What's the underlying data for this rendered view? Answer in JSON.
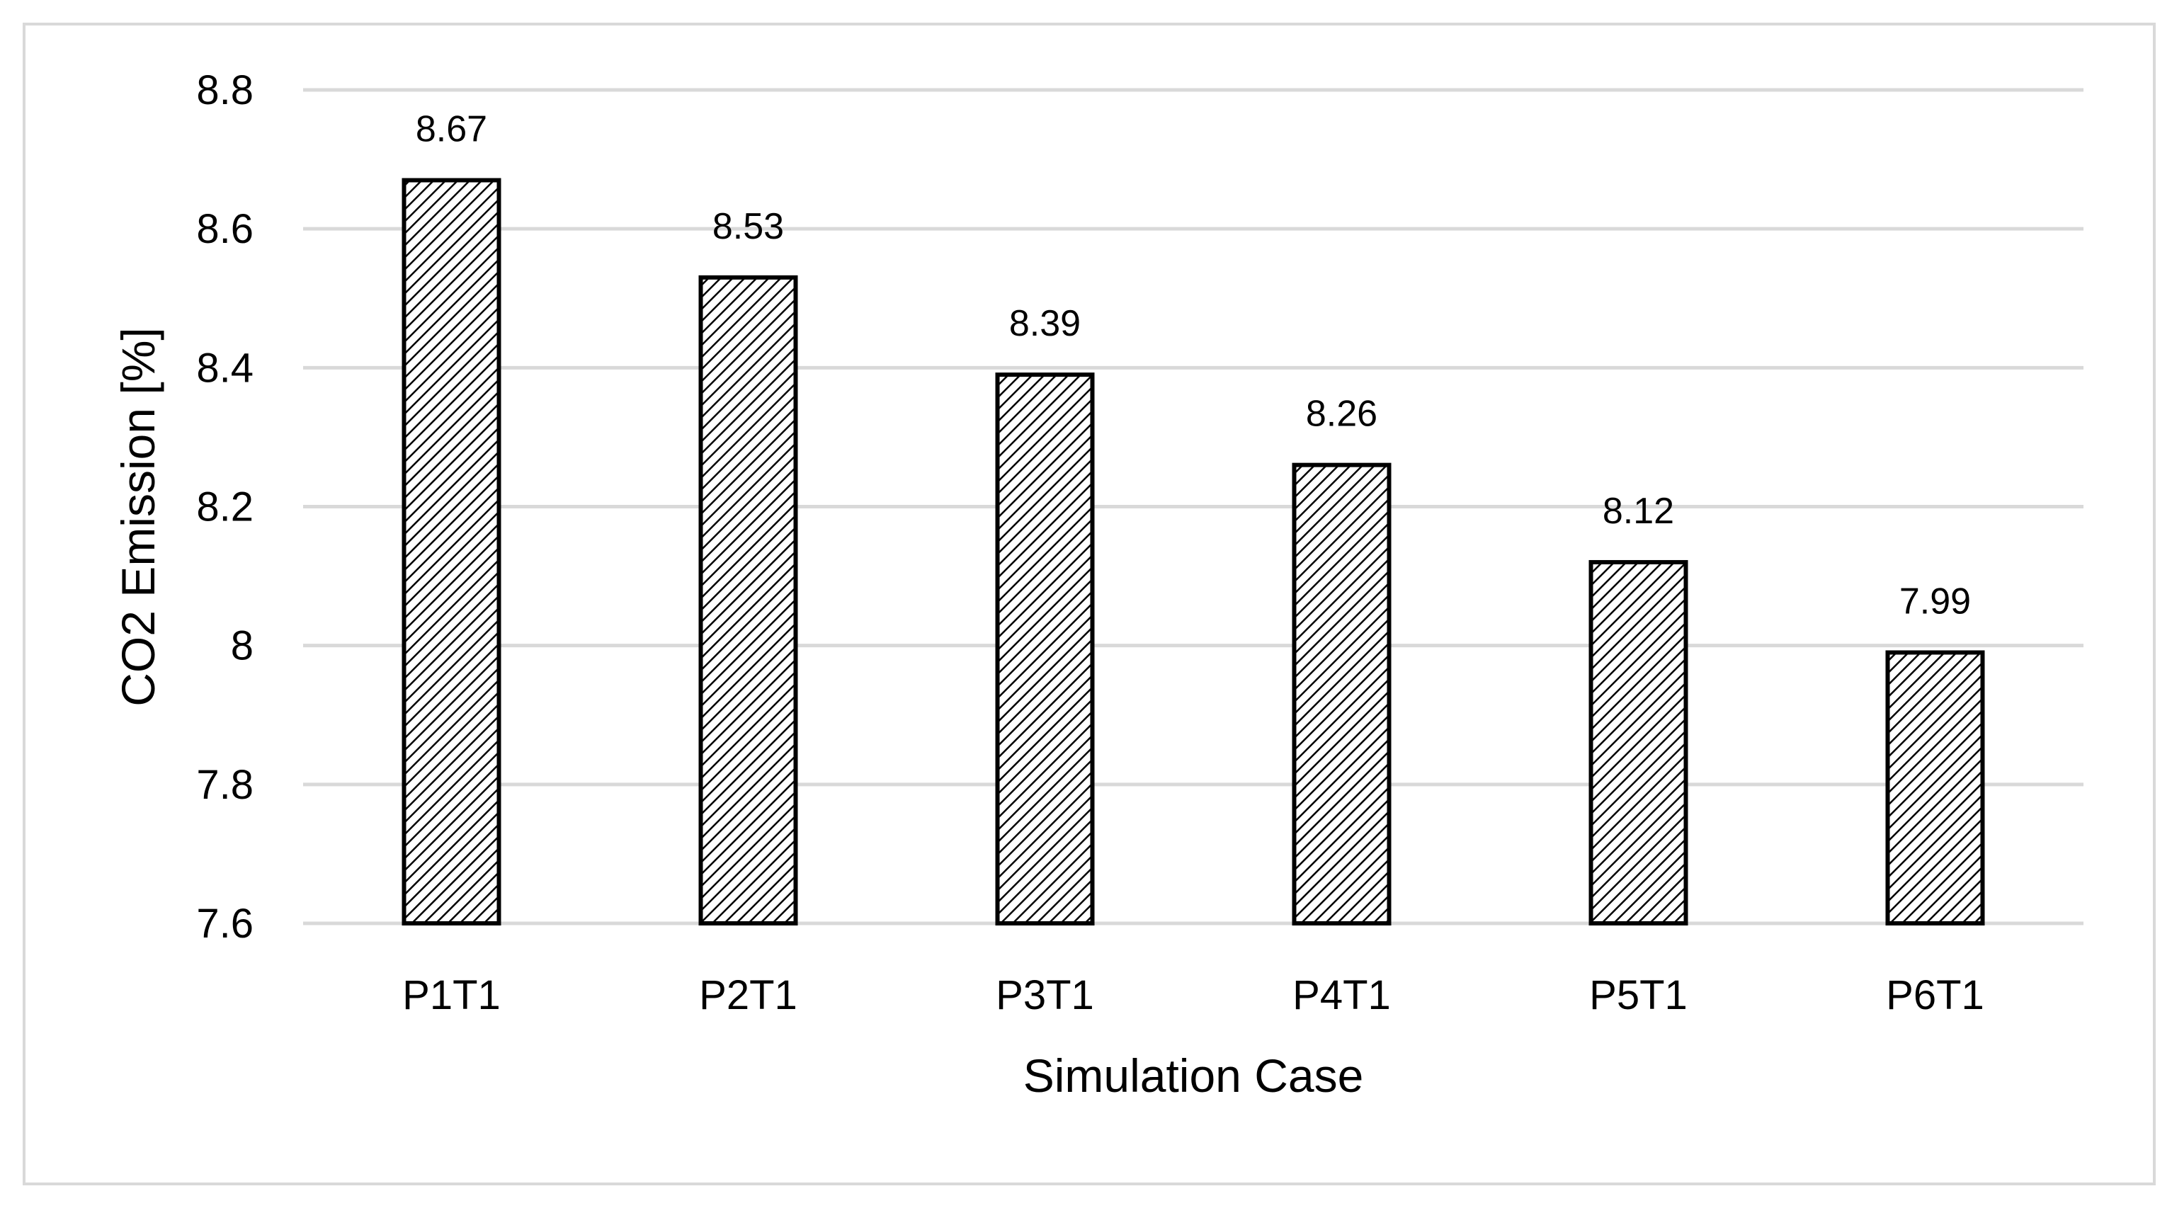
{
  "chart_data": {
    "type": "bar",
    "title": "",
    "xlabel": "Simulation Case",
    "ylabel": "CO2 Emission [%]",
    "categories": [
      "P1T1",
      "P2T1",
      "P3T1",
      "P4T1",
      "P5T1",
      "P6T1"
    ],
    "values": [
      8.67,
      8.53,
      8.39,
      8.26,
      8.12,
      7.99
    ],
    "data_labels": [
      "8.67",
      "8.53",
      "8.39",
      "8.26",
      "8.12",
      "7.99"
    ],
    "ylim": [
      7.6,
      8.8
    ],
    "yticks": [
      7.6,
      7.8,
      8.0,
      8.2,
      8.4,
      8.6,
      8.8
    ],
    "ytick_labels": [
      "7.6",
      "7.8",
      "8",
      "8.2",
      "8.4",
      "8.6",
      "8.8"
    ],
    "grid": true,
    "legend": "none",
    "bar_fill": "diagonal-hatch",
    "colors": {
      "bar_stroke": "#000000",
      "hatch": "#000000",
      "grid": "#d9d9d9",
      "frame": "#d9d9d9",
      "text": "#000000"
    }
  }
}
